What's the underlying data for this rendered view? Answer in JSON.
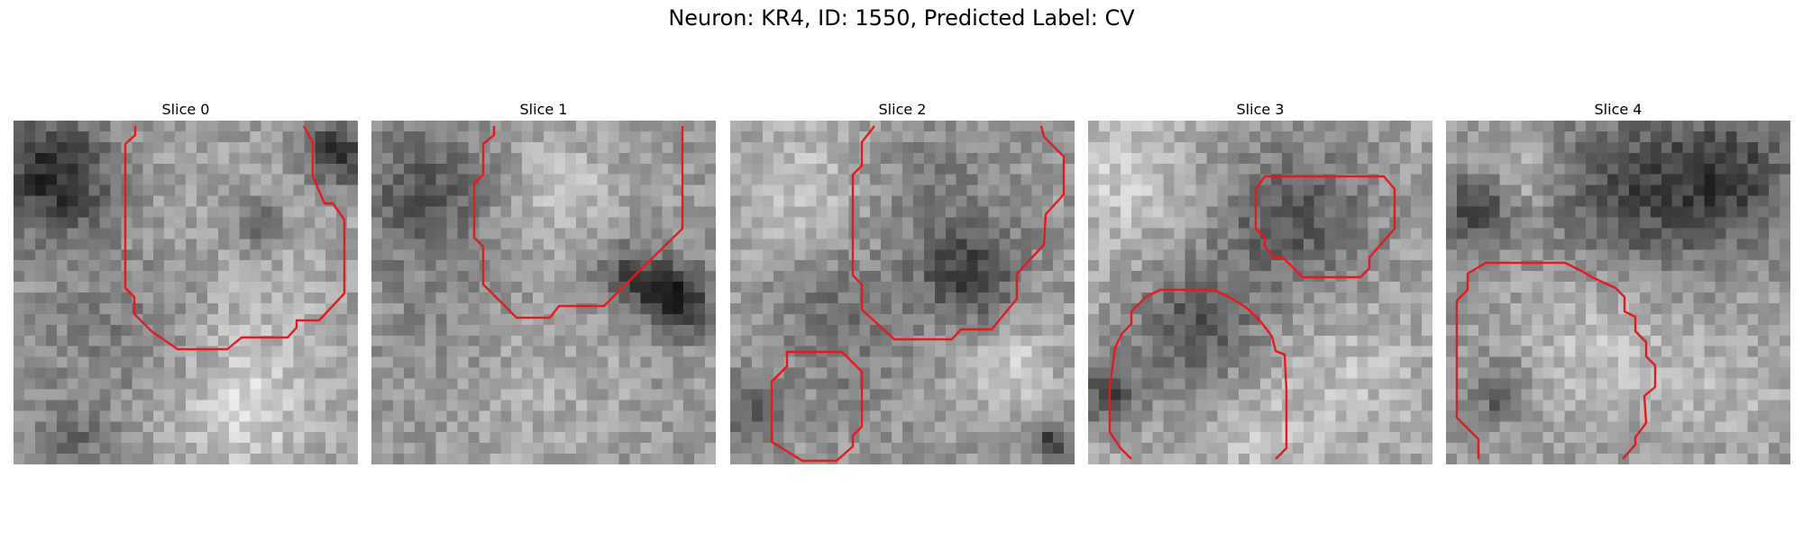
{
  "figure_title": "Neuron: KR4, ID: 1550, Predicted Label: CV",
  "contour_color": "#e41a1c",
  "panels": [
    {
      "title": "Slice 0",
      "pattern": "slice0",
      "contours": [
        "M135,6 L135,16 L124,26 L124,186 L134,196 L134,215 L153,234 L182,254 L237,254 L253,241 L304,241 L314,230 L314,222 L339,222 L367,192 L367,110 L354,92 L345,92 L332,62 L332,24 L322,6"
      ]
    },
    {
      "title": "Slice 1",
      "pattern": "slice1",
      "contours": [
        "M136,6 L136,16 L124,26 L124,60 L114,70 L114,130 L124,140 L124,182 L152,210 L161,219 L198,219 L208,206 L258,206 L289,175 L345,120 L345,6"
      ]
    },
    {
      "title": "Slice 2",
      "pattern": "slice2",
      "contours": [
        "M160,6 L146,24 L146,50 L136,60 L136,172 L146,182 L146,210 L182,243 L246,243 L256,232 L290,232 L318,198 L318,170 L348,138 L350,104 L370,82 L370,40 L348,18 L345,6",
        "M63,257 L124,257 L146,279 L146,340 L136,350 L136,362 L118,378 L80,378 L46,357 L46,290 L63,273 Z"
      ]
    },
    {
      "title": "Slice 3",
      "pattern": "slice3",
      "contours": [
        "M196,62 L328,62 L340,76 L340,120 L312,152 L312,164 L302,174 L238,174 L216,152 L206,152 L196,140 L196,130 L186,120 L186,76 Z",
        "M48,376 L36,364 L24,346 L24,296 L30,252 L38,236 L48,226 L48,212 L64,196 L80,188 L140,188 L160,198 L176,208 L192,224 L204,240 L208,256 L218,260 L220,300 L220,364 L208,376"
      ]
    },
    {
      "title": "Slice 4",
      "pattern": "slice4",
      "contours": [
        "M36,376 L36,354 L12,330 L12,200 L24,188 L24,170 L44,158 L132,158 L152,168 L162,174 L188,186 L198,196 L198,212 L210,218 L210,234 L222,246 L222,262 L232,272 L232,296 L220,306 L222,336 L210,352 L210,360 L196,376"
      ]
    }
  ]
}
